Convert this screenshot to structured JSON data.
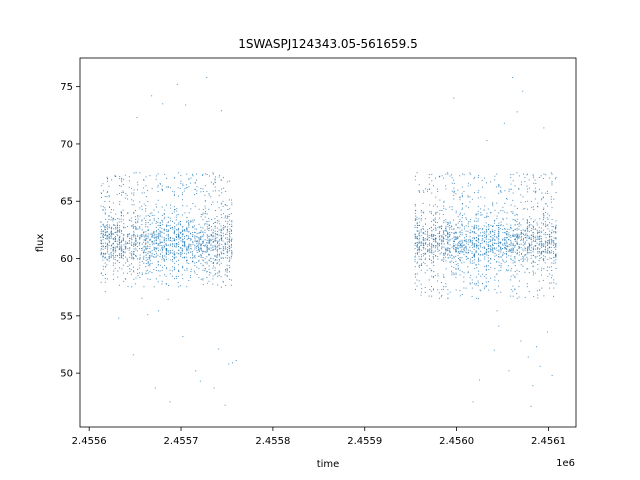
{
  "chart_data": {
    "type": "scatter",
    "title": "1SWASPJ124343.05-561659.5",
    "xlabel": "time",
    "ylabel": "flux",
    "x_offset_label": "1e6",
    "xlim": [
      2455590,
      2456130
    ],
    "ylim": [
      45.3,
      77.5
    ],
    "x_ticks": [
      2455600,
      2455700,
      2455800,
      2455900,
      2456000,
      2456100
    ],
    "x_tick_labels": [
      "2.4556",
      "2.4557",
      "2.4558",
      "2.4559",
      "2.4560",
      "2.4561"
    ],
    "y_ticks": [
      50,
      55,
      60,
      65,
      70,
      75
    ],
    "y_tick_labels": [
      "50",
      "55",
      "60",
      "65",
      "70",
      "75"
    ],
    "grid": false,
    "point_color": "#1f77b4",
    "segments": [
      {
        "x_start": 2455613,
        "x_end": 2455755,
        "core_low": 57.5,
        "core_high": 67.5,
        "center": 61.5
      },
      {
        "x_start": 2455955,
        "x_end": 2456108,
        "core_low": 56.5,
        "core_high": 67.5,
        "center": 61.5
      }
    ],
    "outliers": [
      [
        2455632,
        54.8
      ],
      [
        2455648,
        51.6
      ],
      [
        2455652,
        72.3
      ],
      [
        2455668,
        74.2
      ],
      [
        2455672,
        48.7
      ],
      [
        2455680,
        73.5
      ],
      [
        2455688,
        47.5
      ],
      [
        2455696,
        75.2
      ],
      [
        2455702,
        53.2
      ],
      [
        2455705,
        73.4
      ],
      [
        2455716,
        50.2
      ],
      [
        2455721,
        49.3
      ],
      [
        2455728,
        75.8
      ],
      [
        2455736,
        48.7
      ],
      [
        2455741,
        52.1
      ],
      [
        2455744,
        72.9
      ],
      [
        2455748,
        47.2
      ],
      [
        2455752,
        50.8
      ],
      [
        2455756,
        50.9
      ],
      [
        2455760,
        51.1
      ],
      [
        2455997,
        74.0
      ],
      [
        2456018,
        47.5
      ],
      [
        2456025,
        49.4
      ],
      [
        2456033,
        70.3
      ],
      [
        2456046,
        54.1
      ],
      [
        2456052,
        71.8
      ],
      [
        2456061,
        75.8
      ],
      [
        2456066,
        72.8
      ],
      [
        2456070,
        52.8
      ],
      [
        2456072,
        74.6
      ],
      [
        2456081,
        47.1
      ],
      [
        2456083,
        48.9
      ],
      [
        2456087,
        52.3
      ],
      [
        2456091,
        50.6
      ],
      [
        2456095,
        71.4
      ],
      [
        2456099,
        53.6
      ],
      [
        2456104,
        49.8
      ],
      [
        2456078,
        51.4
      ],
      [
        2456041,
        52.0
      ],
      [
        2456057,
        50.2
      ]
    ]
  }
}
